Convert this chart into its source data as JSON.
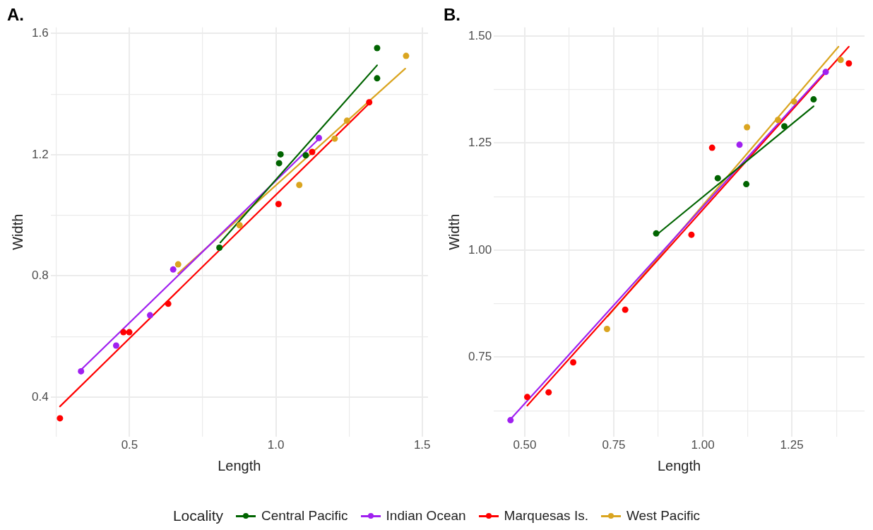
{
  "chart_data": [
    {
      "type": "scatter",
      "title": "A.",
      "xlabel": "Length",
      "ylabel": "Width",
      "legend_title": "Locality",
      "legend": "bottom",
      "grid": true,
      "xlim": [
        0.23,
        1.52
      ],
      "ylim": [
        0.27,
        1.62
      ],
      "xticks": [
        {
          "value": 0.25,
          "label": null
        },
        0.5,
        {
          "value": 0.75,
          "label": null
        },
        {
          "value": 1.0,
          "label": "1.0"
        },
        {
          "value": 1.25,
          "label": null
        },
        1.5
      ],
      "yticks": [
        0.4,
        {
          "value": 0.6,
          "label": null
        },
        0.8,
        {
          "value": 1.0,
          "label": null
        },
        1.2,
        {
          "value": 1.4,
          "label": null
        },
        1.6
      ],
      "series": [
        {
          "name": "Central Pacific",
          "color": "#006400",
          "marker": "circle",
          "x": [
            0.807,
            1.011,
            1.016,
            1.102,
            1.346,
            1.346
          ],
          "values": [
            0.893,
            1.172,
            1.201,
            1.198,
            1.452,
            1.552
          ]
        },
        {
          "name": "Indian Ocean",
          "color": "#a020f0",
          "marker": "circle",
          "x": [
            0.334,
            0.454,
            0.57,
            0.649,
            1.147
          ],
          "values": [
            0.485,
            0.57,
            0.67,
            0.821,
            1.255
          ]
        },
        {
          "name": "Marquesas Is.",
          "color": "#ff0000",
          "marker": "circle",
          "x": [
            0.262,
            0.479,
            0.499,
            0.632,
            1.009,
            1.124,
            1.319
          ],
          "values": [
            0.33,
            0.614,
            0.614,
            0.708,
            1.037,
            1.209,
            1.373
          ]
        },
        {
          "name": "West Pacific",
          "color": "#daa520",
          "marker": "circle",
          "x": [
            0.666,
            0.876,
            1.08,
            1.201,
            1.243,
            1.445
          ],
          "values": [
            0.838,
            0.967,
            1.1,
            1.253,
            1.312,
            1.526
          ]
        },
        {
          "type": "line",
          "color": "#006400",
          "marker": "none",
          "x": [
            0.81,
            1.346
          ],
          "values": [
            0.91,
            1.495
          ]
        },
        {
          "type": "line",
          "color": "#a020f0",
          "marker": "none",
          "x": [
            0.334,
            1.147
          ],
          "values": [
            0.49,
            1.252
          ]
        },
        {
          "type": "line",
          "color": "#ff0000",
          "marker": "none",
          "x": [
            0.262,
            1.32
          ],
          "values": [
            0.369,
            1.37
          ]
        },
        {
          "type": "line",
          "color": "#daa520",
          "marker": "none",
          "x": [
            0.666,
            1.442
          ],
          "values": [
            0.808,
            1.484
          ]
        }
      ]
    },
    {
      "type": "scatter",
      "title": "B.",
      "xlabel": "Length",
      "ylabel": "Width",
      "grid": true,
      "xlim": [
        0.413,
        1.454
      ],
      "ylim": [
        0.565,
        1.52
      ],
      "xticks": [
        {
          "value": 0.5,
          "label": "0.50"
        },
        {
          "value": 0.625,
          "label": null
        },
        0.75,
        {
          "value": 0.875,
          "label": null
        },
        {
          "value": 1.0,
          "label": "1.00"
        },
        {
          "value": 1.125,
          "label": null
        },
        1.25,
        {
          "value": 1.375,
          "label": null
        }
      ],
      "yticks": [
        {
          "value": 0.625,
          "label": null
        },
        0.75,
        {
          "value": 0.875,
          "label": null
        },
        {
          "value": 1.0,
          "label": "1.00"
        },
        {
          "value": 1.125,
          "label": null
        },
        1.25,
        {
          "value": 1.375,
          "label": null
        },
        {
          "value": 1.5,
          "label": "1.50"
        }
      ],
      "series": [
        {
          "color": "#006400",
          "marker": "circle",
          "x": [
            0.869,
            1.042,
            1.122,
            1.229,
            1.311
          ],
          "values": [
            1.039,
            1.168,
            1.154,
            1.289,
            1.352
          ]
        },
        {
          "color": "#a020f0",
          "marker": "circle",
          "x": [
            0.46,
            1.103,
            1.345
          ],
          "values": [
            0.603,
            1.246,
            1.416
          ]
        },
        {
          "color": "#ff0000",
          "marker": "circle",
          "x": [
            0.507,
            0.567,
            0.636,
            0.782,
            0.968,
            1.026,
            1.41
          ],
          "values": [
            0.657,
            0.668,
            0.738,
            0.861,
            1.036,
            1.239,
            1.436
          ]
        },
        {
          "color": "#daa520",
          "marker": "circle",
          "x": [
            0.731,
            1.124,
            1.211,
            1.256,
            1.387
          ],
          "values": [
            0.816,
            1.287,
            1.304,
            1.347,
            1.444
          ]
        },
        {
          "type": "line",
          "color": "#006400",
          "marker": "none",
          "x": [
            0.869,
            1.311
          ],
          "values": [
            1.035,
            1.336
          ]
        },
        {
          "type": "line",
          "color": "#a020f0",
          "marker": "none",
          "x": [
            0.46,
            1.345
          ],
          "values": [
            0.605,
            1.418
          ]
        },
        {
          "type": "line",
          "color": "#ff0000",
          "marker": "none",
          "x": [
            0.507,
            1.41
          ],
          "values": [
            0.637,
            1.475
          ]
        },
        {
          "type": "line",
          "color": "#daa520",
          "marker": "none",
          "x": [
            0.733,
            1.381
          ],
          "values": [
            0.845,
            1.475
          ]
        }
      ]
    }
  ]
}
